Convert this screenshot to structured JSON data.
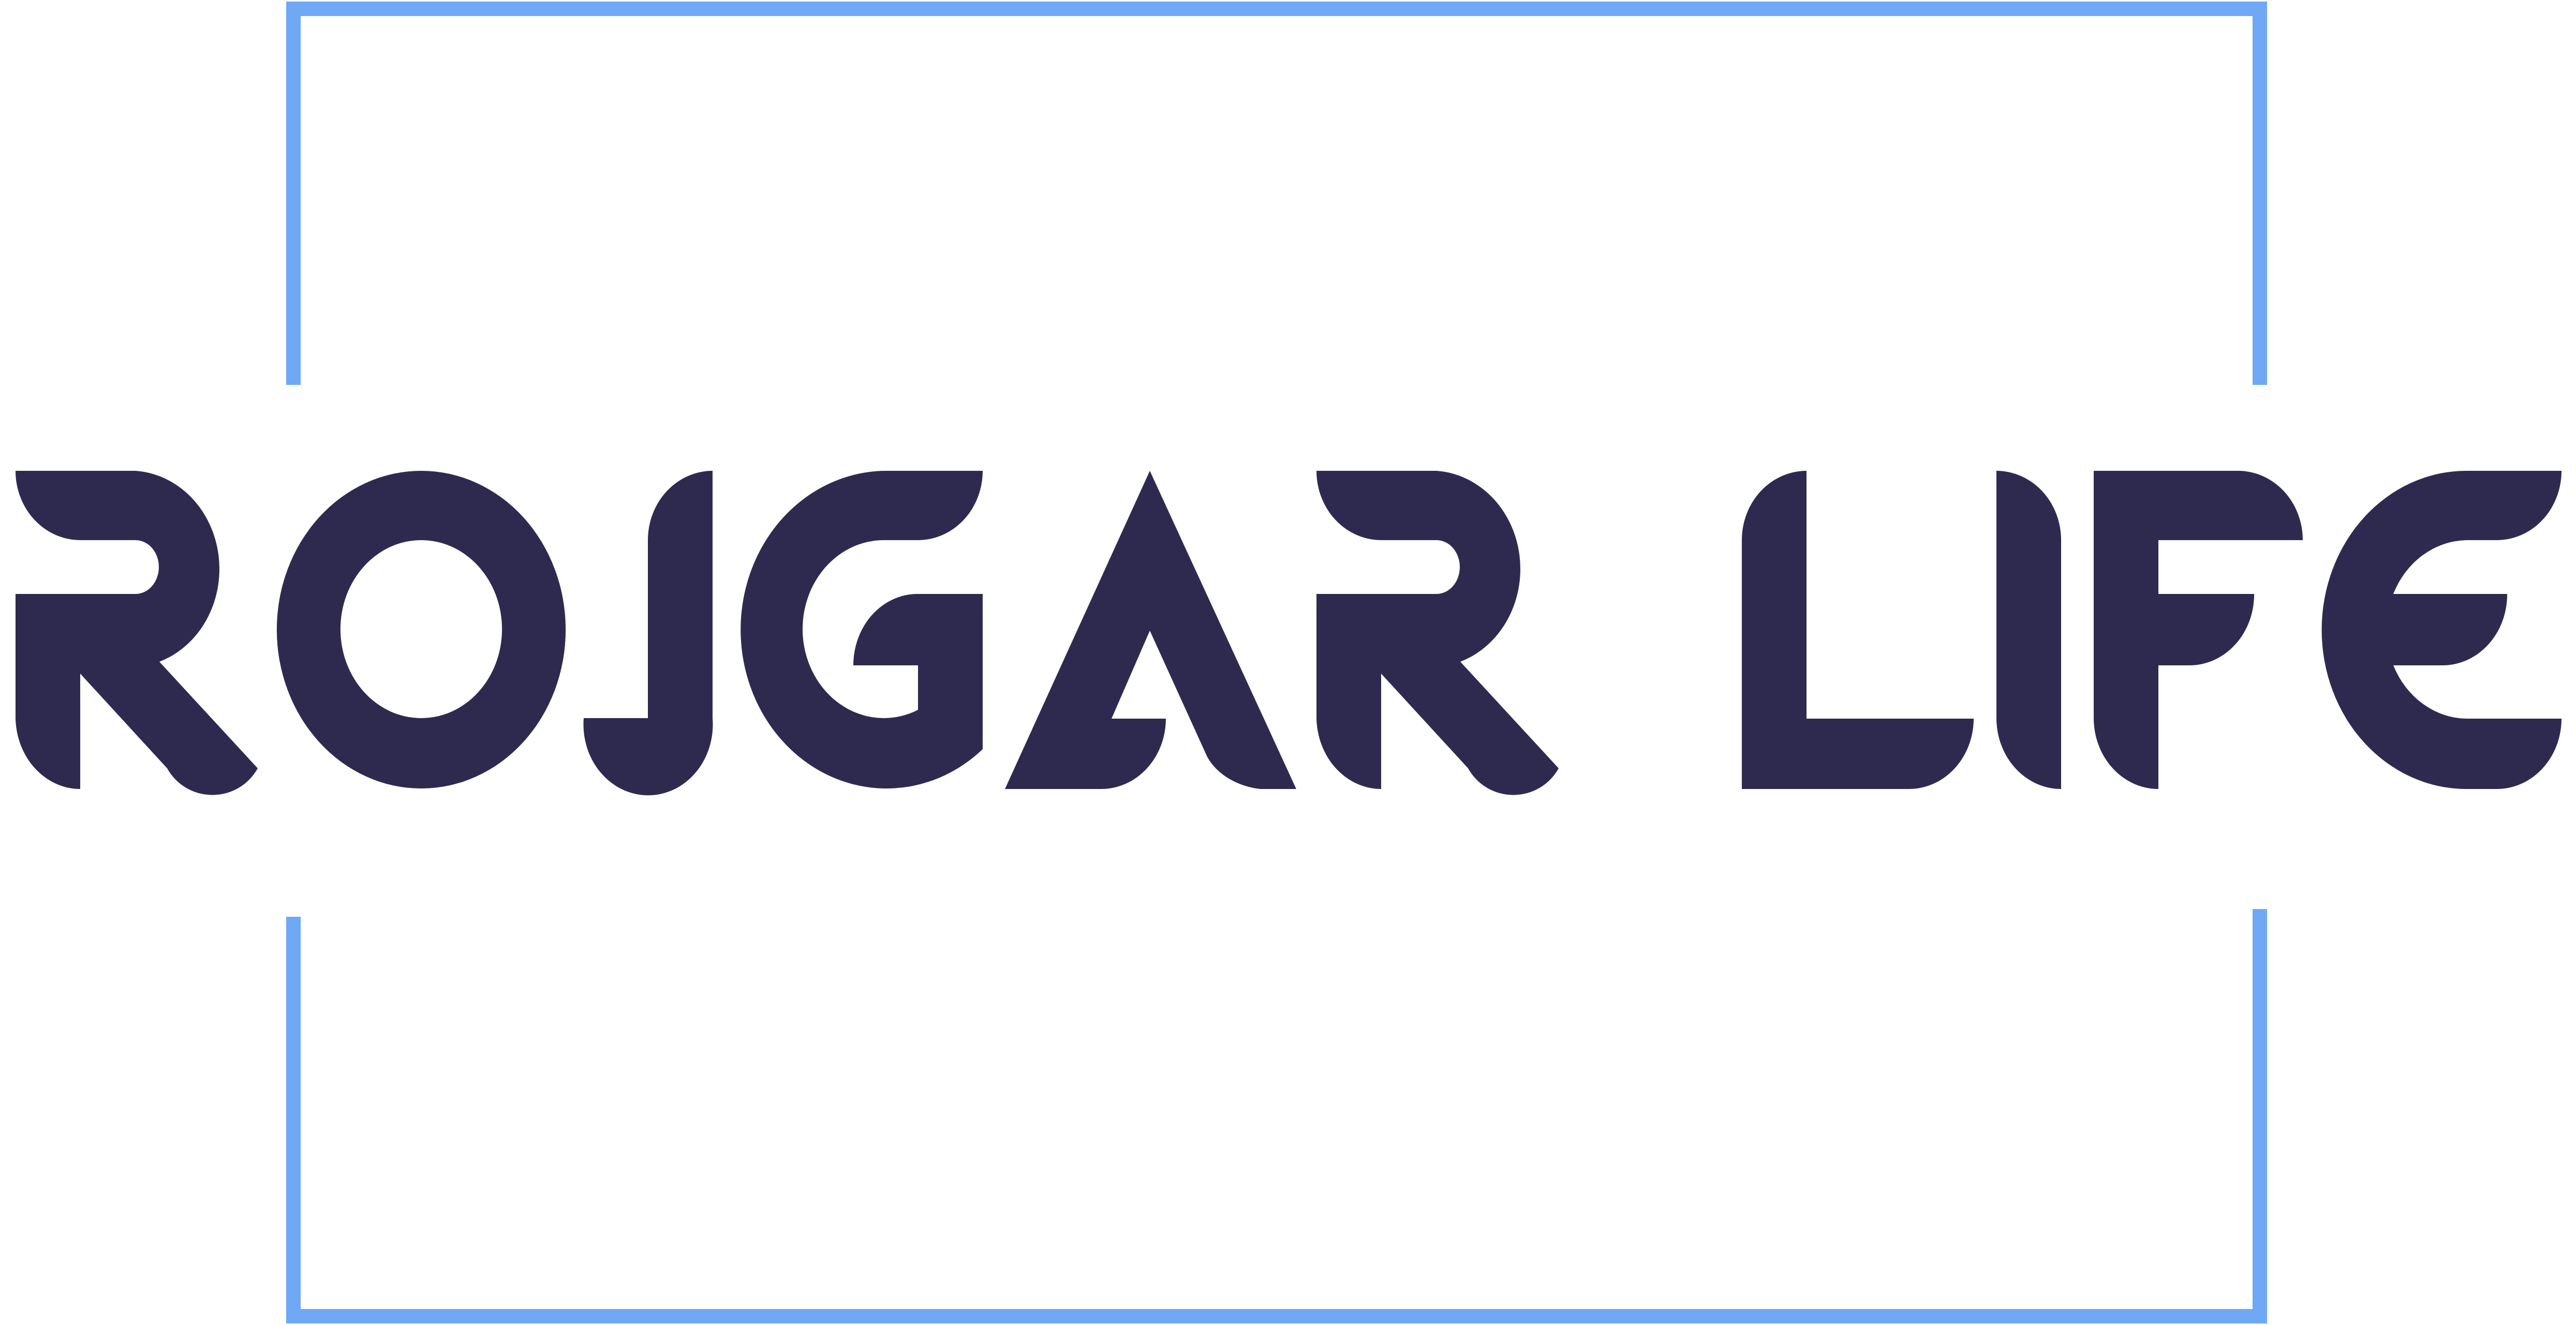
{
  "logo": {
    "wordmark": "ROJGAR LIFE",
    "colors": {
      "text": "#2E2A4F",
      "frame": "#6FA8F5",
      "background": "#FFFFFF"
    }
  }
}
